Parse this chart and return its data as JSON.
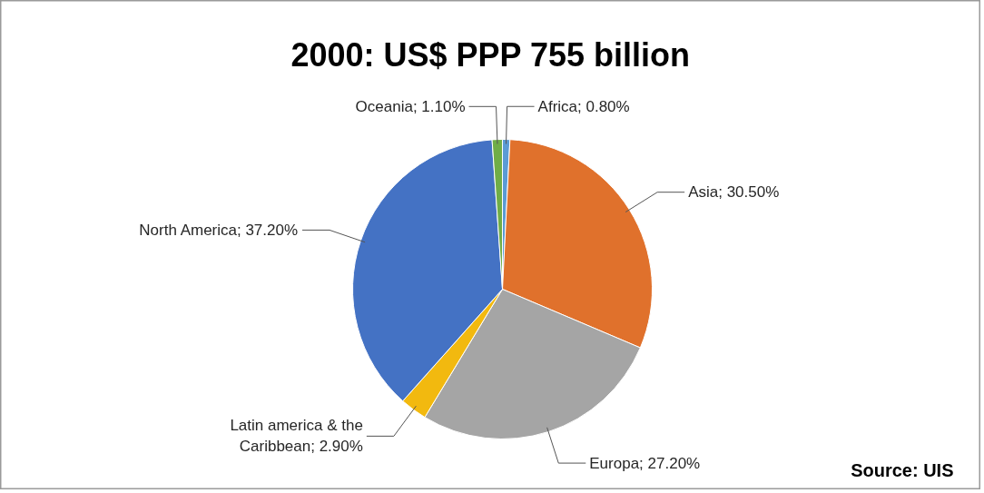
{
  "chart_data": {
    "type": "pie",
    "title": "2000: US$ PPP 755 billion",
    "categories": [
      "Africa",
      "Asia",
      "Europa",
      "Latin america & the Caribbean",
      "North America",
      "Oceania"
    ],
    "values": [
      0.8,
      30.5,
      27.2,
      2.9,
      37.2,
      1.1
    ],
    "value_labels": [
      "0.80%",
      "30.50%",
      "27.20%",
      "2.90%",
      "37.20%",
      "1.10%"
    ],
    "colors": [
      "#5b9bd5",
      "#e0712c",
      "#a5a5a5",
      "#f2b90f",
      "#4472c4",
      "#70ad47"
    ],
    "annotations": [
      "Source: UIS"
    ]
  }
}
